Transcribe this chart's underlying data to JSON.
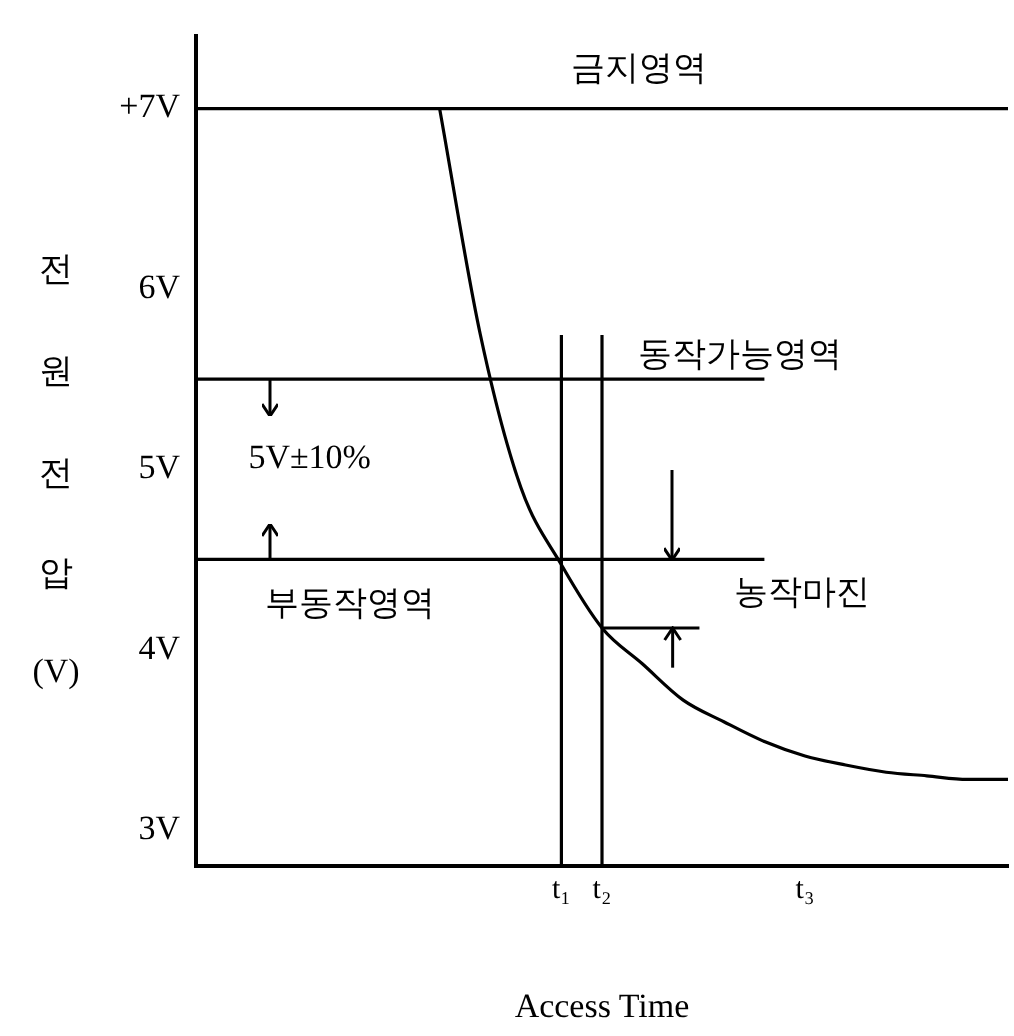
{
  "chart_data": {
    "type": "line",
    "xlabel": "Access Time",
    "ylabel": "전 원 전 압 (V)",
    "categories": [
      null,
      null,
      null,
      null,
      null,
      null,
      null,
      null,
      null,
      "t₁",
      "t₂",
      null,
      null,
      null,
      null,
      "t₃",
      null,
      null,
      null,
      null,
      null
    ],
    "ylim": [
      2.8,
      7.4
    ],
    "yticks": [
      {
        "value": 3,
        "label": "3V"
      },
      {
        "value": 4,
        "label": "4V"
      },
      {
        "value": 5,
        "label": "5V"
      },
      {
        "value": 6,
        "label": "6V"
      },
      {
        "value": 7,
        "label": "+7V"
      }
    ],
    "series": [
      {
        "color": "#000000",
        "values": [
          null,
          null,
          null,
          null,
          null,
          null,
          7,
          5.75,
          4.9,
          4.47,
          4.12,
          3.92,
          3.72,
          3.6,
          3.49,
          3.41,
          3.36,
          3.32,
          3.3,
          3.28,
          3.28
        ]
      },
      {
        "color": "#000000",
        "values": [
          7,
          7,
          7,
          7,
          7,
          7,
          7,
          7,
          7,
          7,
          7,
          7,
          7,
          7,
          7,
          7,
          7,
          7,
          7,
          7,
          7
        ]
      },
      {
        "color": "#000000",
        "values": [
          5.5,
          5.5,
          5.5,
          5.5,
          5.5,
          5.5,
          5.5,
          5.5,
          5.5,
          5.5,
          5.5,
          5.5,
          5.5,
          5.5,
          5.5,
          null,
          null,
          null,
          null,
          null,
          null
        ]
      },
      {
        "color": "#000000",
        "values": [
          4.5,
          4.5,
          4.5,
          4.5,
          4.5,
          4.5,
          4.5,
          4.5,
          4.5,
          4.5,
          4.5,
          4.5,
          4.5,
          4.5,
          4.5,
          null,
          null,
          null,
          null,
          null,
          null
        ]
      }
    ],
    "ref_lines": [
      {
        "axis": "x",
        "value": "t₁",
        "color": "#000000"
      },
      {
        "axis": "x",
        "value": "t₂",
        "color": "#000000"
      }
    ],
    "annotations": [
      "금지영역",
      "동작가능영역",
      "5V±10%",
      "부동작영역",
      {
        "text": "농작마진",
        "x": "t₂",
        "y": 4.12
      }
    ],
    "grid": false,
    "legend": false,
    "marker": "none",
    "line_style": "solid"
  }
}
